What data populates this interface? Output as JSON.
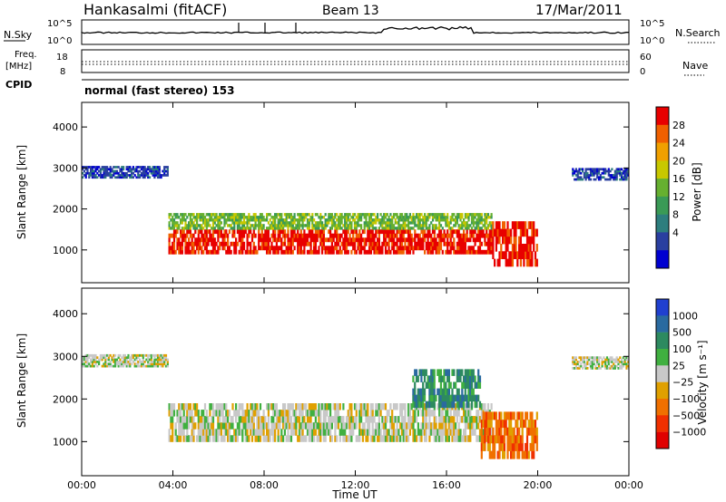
{
  "header": {
    "title": "Hankasalmi (fitACF)",
    "beam": "Beam 13",
    "date": "17/Mar/2011"
  },
  "params": {
    "nsky_label": "N.Sky",
    "nsearch_label": "N.Search",
    "freq_label_1": "Freq.",
    "freq_label_2": "[MHz]",
    "nave_label": "Nave",
    "cpid_label": "CPID",
    "cpid_text": "normal (fast stereo) 153",
    "nsky_ticks": [
      "10^5",
      "10^0"
    ],
    "nsearch_ticks": [
      "10^5",
      "10^0"
    ],
    "freq_ticks": [
      "18",
      "8"
    ],
    "nave_ticks": [
      "60",
      "0"
    ]
  },
  "chart_data": [
    {
      "type": "heatmap",
      "name": "power",
      "ylabel": "Slant Range [km]",
      "xlabel": "",
      "colorbar_label": "Power [dB]",
      "ylim": [
        200,
        4600
      ],
      "xlim": [
        0,
        24
      ],
      "yticks": [
        1000,
        2000,
        3000,
        4000
      ],
      "colorbar_ticks": [
        "4",
        "8",
        "12",
        "16",
        "20",
        "24",
        "28"
      ],
      "colors": [
        "#0000d0",
        "#2a3fa0",
        "#2d7e7e",
        "#3a9a56",
        "#66b030",
        "#c8c800",
        "#f0a000",
        "#f06000",
        "#e80000"
      ],
      "features": [
        {
          "x0": 0.0,
          "x1": 3.8,
          "range": [
            2750,
            3050
          ],
          "level": 1
        },
        {
          "x0": 3.8,
          "x1": 18.0,
          "range": [
            900,
            1500
          ],
          "level": 8
        },
        {
          "x0": 3.8,
          "x1": 18.0,
          "range": [
            1500,
            1900
          ],
          "level": 4
        },
        {
          "x0": 18.0,
          "x1": 20.0,
          "range": [
            600,
            1700
          ],
          "level": 8
        },
        {
          "x0": 21.5,
          "x1": 24.0,
          "range": [
            2700,
            3000
          ],
          "level": 1
        }
      ]
    },
    {
      "type": "heatmap",
      "name": "velocity",
      "ylabel": "Slant Range [km]",
      "xlabel": "Time UT",
      "colorbar_label": "Velocity [m s⁻¹]",
      "ylim": [
        200,
        4600
      ],
      "xlim": [
        0,
        24
      ],
      "yticks": [
        1000,
        2000,
        3000,
        4000
      ],
      "colorbar_ticks": [
        "1000",
        "500",
        "100",
        "25",
        "−25",
        "−100",
        "−500",
        "−1000"
      ],
      "colors": [
        "#2040d0",
        "#2a6aa0",
        "#2d8a60",
        "#40b040",
        "#c8c8c8",
        "#e0a000",
        "#f07000",
        "#f03000",
        "#e00000"
      ],
      "features": [
        {
          "x0": 0.0,
          "x1": 3.8,
          "range": [
            2750,
            3050
          ],
          "level": 4
        },
        {
          "x0": 3.8,
          "x1": 18.0,
          "range": [
            1000,
            1900
          ],
          "level": 4
        },
        {
          "x0": 14.5,
          "x1": 17.5,
          "range": [
            1800,
            2700
          ],
          "level": 2
        },
        {
          "x0": 17.5,
          "x1": 20.0,
          "range": [
            600,
            1700
          ],
          "level": 6
        },
        {
          "x0": 21.5,
          "x1": 24.0,
          "range": [
            2700,
            3000
          ],
          "level": 4
        }
      ]
    }
  ],
  "x_axis": {
    "ticks": [
      "00:00",
      "04:00",
      "08:00",
      "12:00",
      "16:00",
      "20:00",
      "00:00"
    ]
  }
}
